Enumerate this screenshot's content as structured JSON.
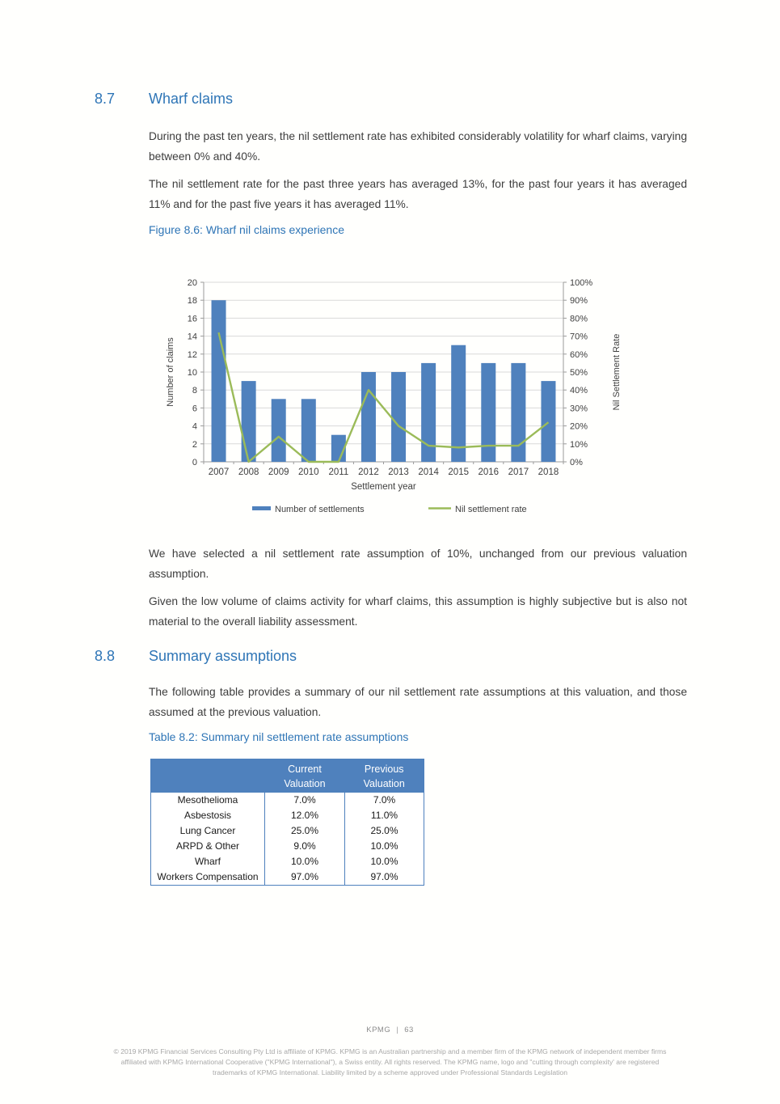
{
  "section_87": {
    "number": "8.7",
    "title": "Wharf claims",
    "para1": "During the past ten years, the nil settlement rate has exhibited considerably volatility for wharf claims, varying between 0% and 40%.",
    "para2": "The nil settlement rate for the past three years has averaged 13%, for the past four years it has averaged 11% and for the past five years it has averaged 11%.",
    "figure_caption": "Figure 8.6: Wharf nil claims experience",
    "para3": "We have selected a nil settlement rate assumption of 10%, unchanged from our previous valuation assumption.",
    "para4": "Given the low volume of claims activity for wharf claims, this assumption is highly subjective but is also not material to the overall liability assessment."
  },
  "section_88": {
    "number": "8.8",
    "title": "Summary assumptions",
    "para1": "The following table provides a summary of our nil settlement rate assumptions at this valuation, and those assumed at the previous valuation.",
    "table_caption": "Table 8.2: Summary nil settlement rate assumptions"
  },
  "chart_data": {
    "type": "bar",
    "title": "Figure 8.6: Wharf nil claims experience",
    "categories": [
      "2007",
      "2008",
      "2009",
      "2010",
      "2011",
      "2012",
      "2013",
      "2014",
      "2015",
      "2016",
      "2017",
      "2018"
    ],
    "series": [
      {
        "name": "Number of settlements",
        "kind": "bar",
        "axis": "left",
        "values": [
          18,
          9,
          7,
          7,
          3,
          10,
          10,
          11,
          13,
          11,
          11,
          9
        ],
        "color": "#4f81bd"
      },
      {
        "name": "Nil settlement rate",
        "kind": "line",
        "axis": "right",
        "unit": "%",
        "values": [
          72,
          0,
          14,
          0,
          0,
          40,
          20,
          9,
          8,
          9,
          9,
          22
        ],
        "color": "#9bbb59"
      }
    ],
    "xlabel": "Settlement year",
    "ylabel_left": "Number of claims",
    "ylabel_right": "Nil Settlement Rate",
    "ylim_left": [
      0,
      20
    ],
    "ystep_left": 2,
    "ylim_right": [
      0,
      100
    ],
    "ystep_right": 10,
    "grid": true,
    "legend_position": "bottom"
  },
  "table": {
    "header": [
      "",
      "Current\nValuation",
      "Previous\nValuation"
    ],
    "rows": [
      {
        "label": "Mesothelioma",
        "current": "7.0%",
        "previous": "7.0%"
      },
      {
        "label": "Asbestosis",
        "current": "12.0%",
        "previous": "11.0%"
      },
      {
        "label": "Lung Cancer",
        "current": "25.0%",
        "previous": "25.0%"
      },
      {
        "label": "ARPD & Other",
        "current": "9.0%",
        "previous": "10.0%"
      },
      {
        "label": "Wharf",
        "current": "10.0%",
        "previous": "10.0%"
      },
      {
        "label": "Workers Compensation",
        "current": "97.0%",
        "previous": "97.0%"
      }
    ]
  },
  "footer": {
    "brand": "KPMG",
    "separator": "|",
    "page_number": "63",
    "legal_lines": [
      "© 2019 KPMG Financial Services Consulting Pty Ltd is affiliate of KPMG. KPMG is an Australian partnership and a member firm of the KPMG network of independent member firms",
      "affiliated with KPMG International Cooperative (\"KPMG International\"), a Swiss entity. All rights reserved. The KPMG name, logo and \"cutting through complexity' are registered",
      "trademarks of KPMG International. Liability limited by a scheme approved under Professional Standards Legislation"
    ]
  },
  "colors": {
    "heading_blue": "#2e75b6",
    "bar_blue": "#4f81bd",
    "line_green": "#9bbb59",
    "table_header_bg": "#4f81bd",
    "table_border": "#4f81bd",
    "gridline": "#d9d9d9",
    "axis": "#9b9b9b"
  }
}
